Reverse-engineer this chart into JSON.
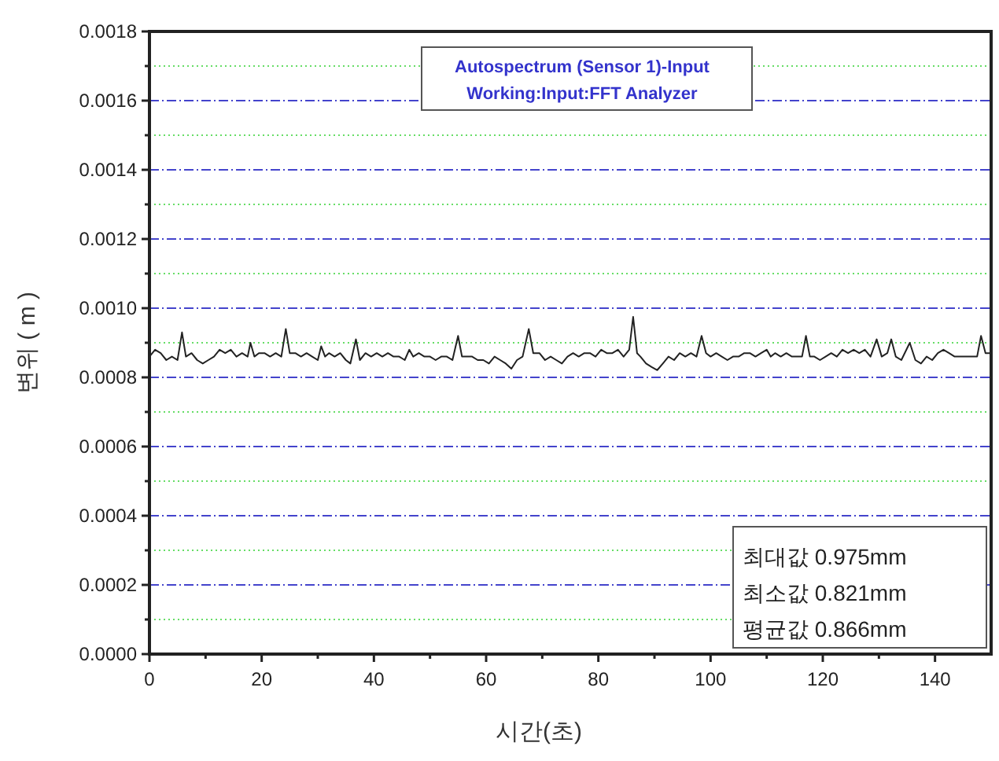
{
  "chart_data": {
    "type": "line",
    "title": "Autospectrum (Sensor 1)-Input",
    "subtitle": "Working:Input:FFT Analyzer",
    "xlabel": "시간(초)",
    "ylabel": "변위 ( m )",
    "annotations": [
      "최대값 0.975mm",
      "최소값 0.821mm",
      "평균값 0.866mm"
    ],
    "xlim": [
      0,
      150
    ],
    "ylim": [
      0,
      0.0018
    ],
    "xticks": [
      0,
      {
        "value": 10,
        "label": null
      },
      20,
      {
        "value": 30,
        "label": null
      },
      40,
      {
        "value": 50,
        "label": null
      },
      60,
      {
        "value": 70,
        "label": null
      },
      80,
      {
        "value": 90,
        "label": null
      },
      100,
      {
        "value": 110,
        "label": null
      },
      120,
      {
        "value": 130,
        "label": null
      },
      140
    ],
    "yticks": [
      {
        "value": 0,
        "label": "0.0000"
      },
      {
        "value": 0.0001,
        "label": null
      },
      {
        "value": 0.0002,
        "label": "0.0002"
      },
      {
        "value": 0.0003,
        "label": null
      },
      {
        "value": 0.0004,
        "label": "0.0004"
      },
      {
        "value": 0.0005,
        "label": null
      },
      {
        "value": 0.0006,
        "label": "0.0006"
      },
      {
        "value": 0.0007,
        "label": null
      },
      {
        "value": 0.0008,
        "label": "0.0008"
      },
      {
        "value": 0.0009,
        "label": null
      },
      {
        "value": 0.001,
        "label": "0.0010"
      },
      {
        "value": 0.0011,
        "label": null
      },
      {
        "value": 0.0012,
        "label": "0.0012"
      },
      {
        "value": 0.0013,
        "label": null
      },
      {
        "value": 0.0014,
        "label": "0.0014"
      },
      {
        "value": 0.0015,
        "label": null
      },
      {
        "value": 0.0016,
        "label": "0.0016"
      },
      {
        "value": 0.0017,
        "label": null
      },
      {
        "value": 0.0018,
        "label": "0.0018"
      }
    ],
    "grid": "y",
    "marker": "none",
    "line_style": "solid",
    "series": [
      {
        "color": "#222222",
        "x": [
          0,
          1,
          2,
          3,
          4,
          5,
          5.8,
          6.5,
          7.5,
          8.5,
          9.5,
          10.5,
          11.5,
          12.5,
          13.5,
          14.5,
          15.5,
          16.5,
          17.5,
          18,
          18.7,
          19.5,
          20.5,
          21.5,
          22.5,
          23.5,
          24.3,
          25,
          26,
          27,
          28,
          29,
          30,
          30.6,
          31.3,
          32,
          33,
          34,
          35,
          35.8,
          36.8,
          37.5,
          38.5,
          39.5,
          40.5,
          41.5,
          42.5,
          43.5,
          44.5,
          45.5,
          46.3,
          47,
          48,
          49,
          50,
          51,
          52,
          53,
          54,
          55,
          55.7,
          56.5,
          57.5,
          58.5,
          59.5,
          60.5,
          61.5,
          62.5,
          63.5,
          64.5,
          65.5,
          66.5,
          67.6,
          68.4,
          69.5,
          70.5,
          71.5,
          72.5,
          73.5,
          74.5,
          75.5,
          76.5,
          77.5,
          78.5,
          79.5,
          80.5,
          81.5,
          82.5,
          83.5,
          84.5,
          85.5,
          86.2,
          86.9,
          87.5,
          88.5,
          89.5,
          90.5,
          91.5,
          92.5,
          93.5,
          94.5,
          95.5,
          96.5,
          97.5,
          98.4,
          99.2,
          100,
          101,
          102,
          103,
          104,
          105,
          106,
          107,
          108,
          109,
          110,
          110.7,
          111.5,
          112.5,
          113.5,
          114.5,
          115.5,
          116.3,
          117,
          117.7,
          118.5,
          119.5,
          120.5,
          121.5,
          122.5,
          123.5,
          124.5,
          125.5,
          126.5,
          127.5,
          128.5,
          129.6,
          130.5,
          131.5,
          132.2,
          133,
          134,
          135.5,
          136.5,
          137.5,
          138.5,
          139.5,
          140.5,
          141.5,
          142.5,
          143.5,
          144.5,
          145.5,
          146.5,
          147.5,
          148.2,
          149,
          150
        ],
        "values": [
          0.00086,
          0.00088,
          0.00087,
          0.00085,
          0.00086,
          0.00085,
          0.00093,
          0.00086,
          0.00087,
          0.00085,
          0.00084,
          0.00085,
          0.00086,
          0.00088,
          0.00087,
          0.00088,
          0.00086,
          0.00087,
          0.00086,
          0.0009,
          0.00086,
          0.00087,
          0.00087,
          0.00086,
          0.00087,
          0.00086,
          0.00094,
          0.00087,
          0.00087,
          0.00086,
          0.00087,
          0.00086,
          0.00085,
          0.00089,
          0.00086,
          0.00087,
          0.00086,
          0.00087,
          0.00085,
          0.00084,
          0.00091,
          0.00085,
          0.00087,
          0.00086,
          0.00087,
          0.00086,
          0.00087,
          0.00086,
          0.00086,
          0.00085,
          0.00088,
          0.00086,
          0.00087,
          0.00086,
          0.00086,
          0.00085,
          0.00086,
          0.00086,
          0.00085,
          0.00092,
          0.00086,
          0.00086,
          0.00086,
          0.00085,
          0.00085,
          0.00084,
          0.00086,
          0.00085,
          0.00084,
          0.000825,
          0.00085,
          0.00086,
          0.00094,
          0.00087,
          0.00087,
          0.00085,
          0.00086,
          0.00085,
          0.00084,
          0.00086,
          0.00087,
          0.00086,
          0.00087,
          0.00087,
          0.00086,
          0.00088,
          0.00087,
          0.00087,
          0.00088,
          0.00086,
          0.00088,
          0.000975,
          0.00087,
          0.00086,
          0.00084,
          0.00083,
          0.000821,
          0.00084,
          0.00086,
          0.00085,
          0.00087,
          0.00086,
          0.00087,
          0.00086,
          0.00092,
          0.00087,
          0.00086,
          0.00087,
          0.00086,
          0.00085,
          0.00086,
          0.00086,
          0.00087,
          0.00087,
          0.00086,
          0.00087,
          0.00088,
          0.00086,
          0.00087,
          0.00086,
          0.00087,
          0.00086,
          0.00086,
          0.00086,
          0.00092,
          0.00086,
          0.00086,
          0.00085,
          0.00086,
          0.00087,
          0.00086,
          0.00088,
          0.00087,
          0.00088,
          0.00087,
          0.00088,
          0.00086,
          0.00091,
          0.00086,
          0.00087,
          0.00091,
          0.00086,
          0.00085,
          0.0009,
          0.00085,
          0.00084,
          0.00086,
          0.00085,
          0.00087,
          0.00088,
          0.00087,
          0.00086,
          0.00086,
          0.00086,
          0.00086,
          0.00086,
          0.00092,
          0.00087,
          0.00087
        ]
      }
    ]
  }
}
